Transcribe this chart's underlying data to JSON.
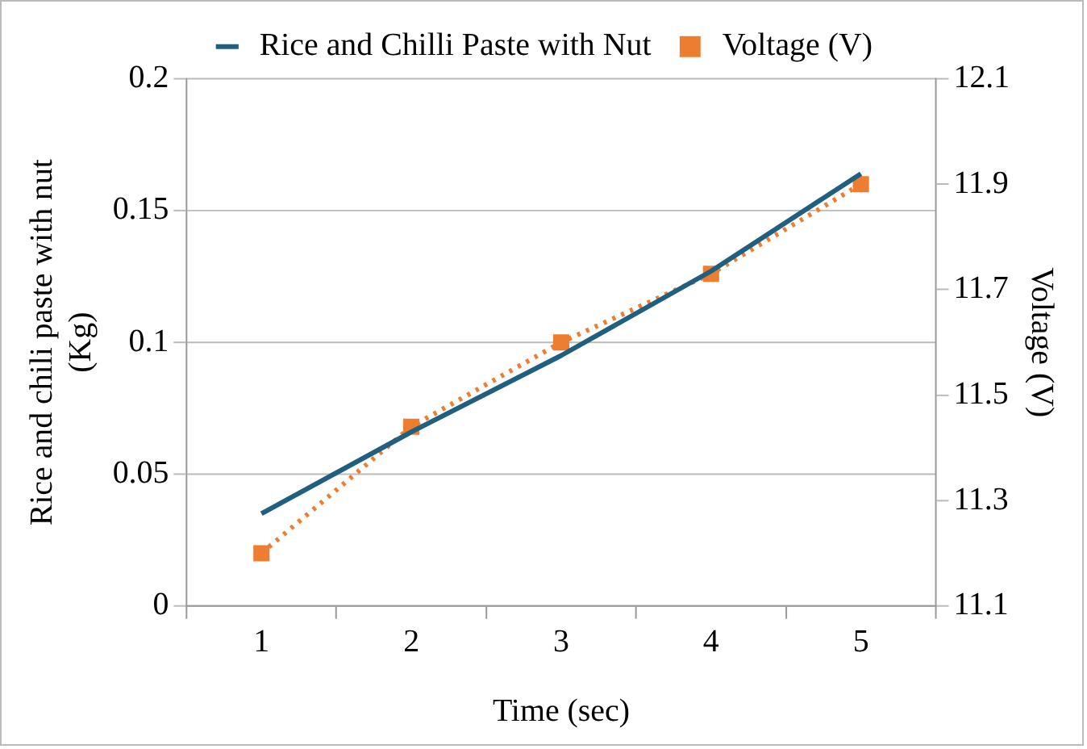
{
  "chart_data": {
    "type": "line",
    "xlabel": "Time (sec)",
    "ylabel": "Rice and chili paste with nut (Kg)",
    "y2label": "Voltage (V)",
    "categories": [
      "1",
      "2",
      "3",
      "4",
      "5"
    ],
    "series": [
      {
        "name": "Rice and Chilli Paste with Nut",
        "color": "#1f5f7f",
        "values": [
          0.035,
          0.066,
          0.095,
          0.127,
          0.164
        ],
        "marker": "none",
        "line_style": "solid"
      },
      {
        "name": "Voltage (V)",
        "color": "#ed7d31",
        "values": [
          11.2,
          11.44,
          11.6,
          11.73,
          11.9
        ],
        "axis": "y2",
        "marker": "square",
        "line_style": "dotted"
      }
    ],
    "ylim": [
      0,
      0.2
    ],
    "yticks": [
      0,
      0.05,
      0.1,
      0.15,
      0.2
    ],
    "y2lim": [
      11.1,
      12.1
    ],
    "y2ticks": [
      11.1,
      11.3,
      11.5,
      11.7,
      11.9,
      12.1
    ],
    "grid": "y",
    "legend": "top"
  }
}
